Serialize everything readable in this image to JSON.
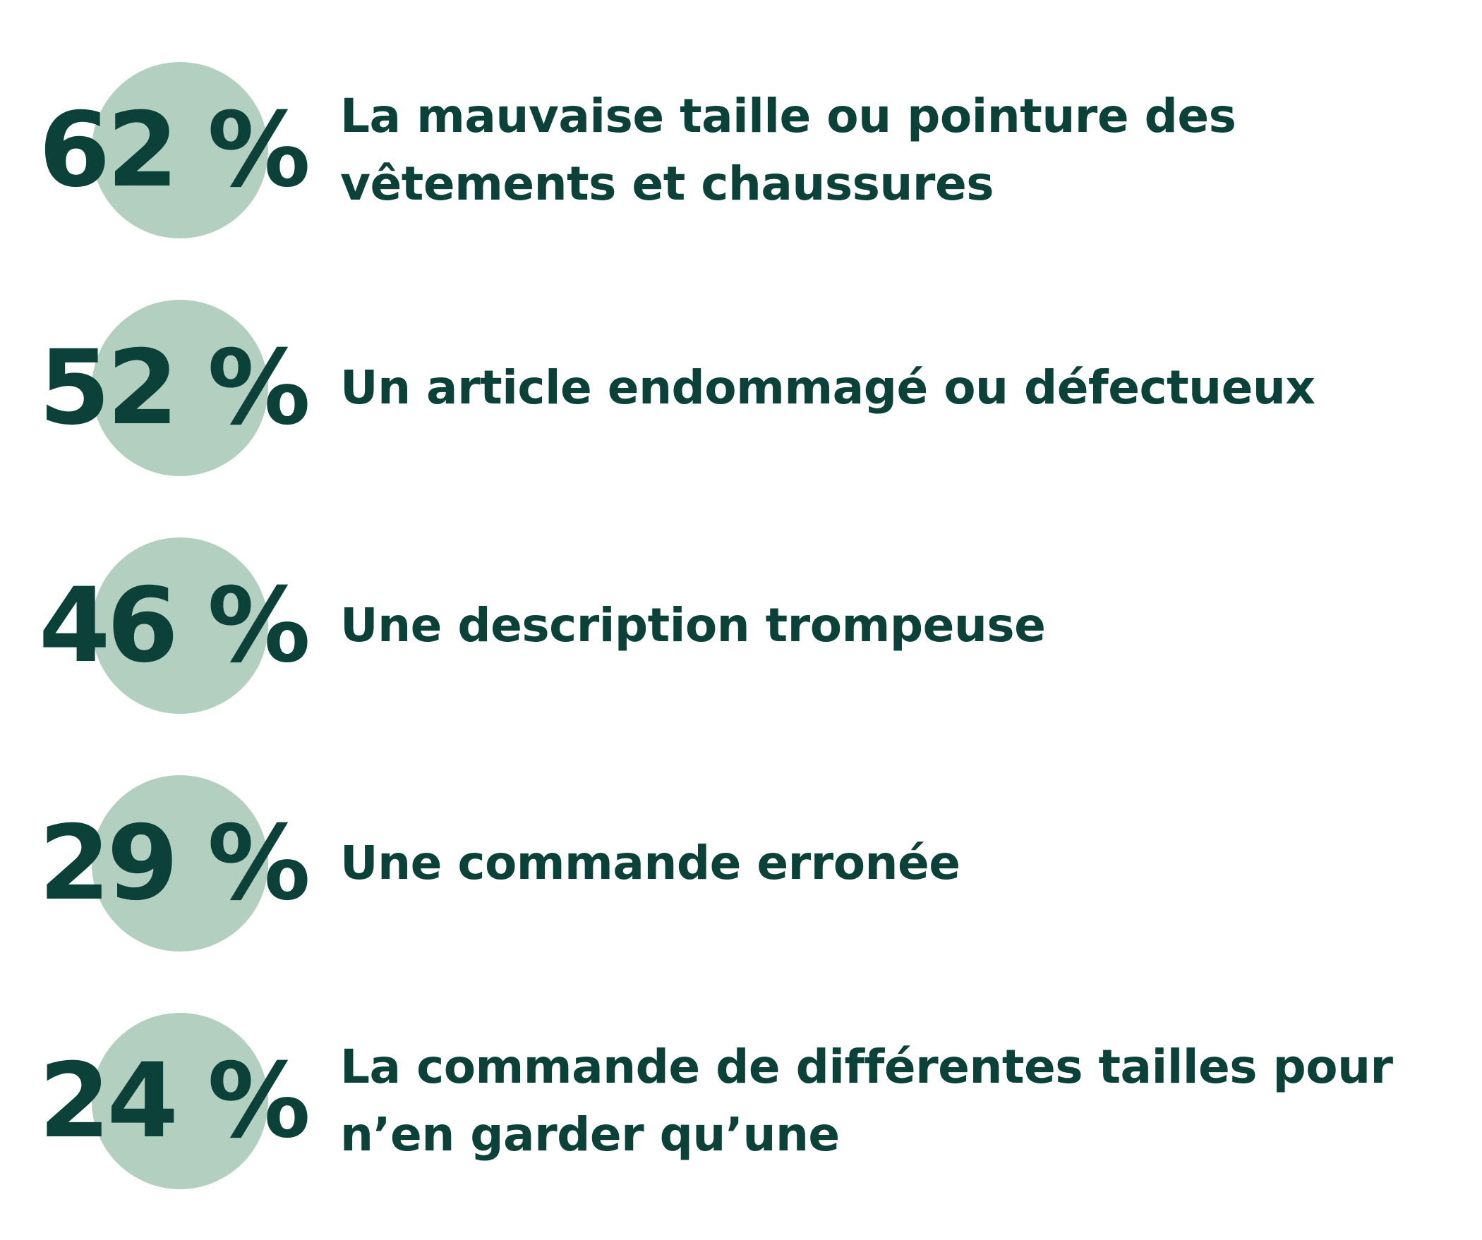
{
  "stats": [
    {
      "value": "62 %",
      "label": "La mauvaise taille ou pointure des vêtements et chaussures"
    },
    {
      "value": "52 %",
      "label": "Un article endommagé ou défectueux"
    },
    {
      "value": "46 %",
      "label": "Une description trompeuse"
    },
    {
      "value": "29 %",
      "label": "Une commande erronée"
    },
    {
      "value": "24 %",
      "label": "La commande de différentes tailles pour n’en garder qu’une"
    }
  ],
  "colors": {
    "text": "#0b4138",
    "circle": "#b2cfbf",
    "background": "#ffffff"
  }
}
